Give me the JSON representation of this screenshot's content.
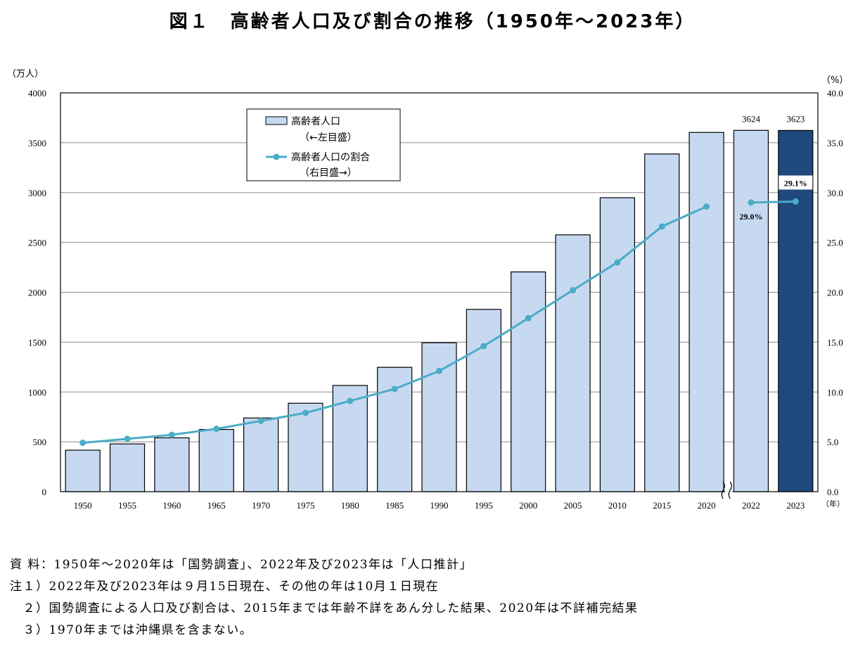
{
  "title": "図１　高齢者人口及び割合の推移（1950年～2023年）",
  "chart_data": {
    "type": "bar+line",
    "categories": [
      "1950",
      "1955",
      "1960",
      "1965",
      "1970",
      "1975",
      "1980",
      "1985",
      "1990",
      "1995",
      "2000",
      "2005",
      "2010",
      "2015",
      "2020",
      "2022",
      "2023"
    ],
    "series": [
      {
        "name": "高齢者人口",
        "axis": "left",
        "type": "bar",
        "values": [
          416,
          479,
          540,
          624,
          739,
          887,
          1065,
          1247,
          1493,
          1828,
          2204,
          2576,
          2948,
          3387,
          3603,
          3624,
          3623
        ],
        "color": "#c6d9f1",
        "highlight_color": "#1f497d"
      },
      {
        "name": "高齢者人口の割合",
        "axis": "right",
        "type": "line",
        "values": [
          4.9,
          5.3,
          5.7,
          6.3,
          7.1,
          7.9,
          9.1,
          10.3,
          12.1,
          14.6,
          17.4,
          20.2,
          23.0,
          26.6,
          28.6,
          29.0,
          29.1
        ],
        "color": "#4bacc6"
      }
    ],
    "bar_data_labels": {
      "2022": "3624",
      "2023": "3623"
    },
    "line_data_labels": {
      "2022": "29.0%",
      "2023": "29.1%"
    },
    "left_axis": {
      "unit": "（万人）",
      "min": 0,
      "max": 4000,
      "ticks": [
        "0",
        "500",
        "1000",
        "1500",
        "2000",
        "2500",
        "3000",
        "3500",
        "4000"
      ]
    },
    "right_axis": {
      "unit": "（%）",
      "min": 0,
      "max": 40,
      "ticks": [
        "0.0",
        "5.0",
        "10.0",
        "15.0",
        "20.0",
        "25.0",
        "30.0",
        "35.0",
        "40.0"
      ]
    },
    "x_unit": "（年）",
    "legend": {
      "placement": "top-left",
      "bar_label": "高齢者人口",
      "bar_sub": "（←左目盛）",
      "line_label": "高齢者人口の割合",
      "line_sub": "（右目盛→）"
    },
    "grid": true,
    "axis_break_between": [
      "2020",
      "2022"
    ]
  },
  "notes": [
    "資 料：1950年～2020年は「国勢調査」、2022年及び2023年は「人口推計」",
    "注１）2022年及び2023年は９月15日現在、その他の年は10月１日現在",
    "　２）国勢調査による人口及び割合は、2015年までは年齢不詳をあん分した結果、2020年は不詳補完結果",
    "　３）1970年までは沖縄県を含まない。"
  ]
}
